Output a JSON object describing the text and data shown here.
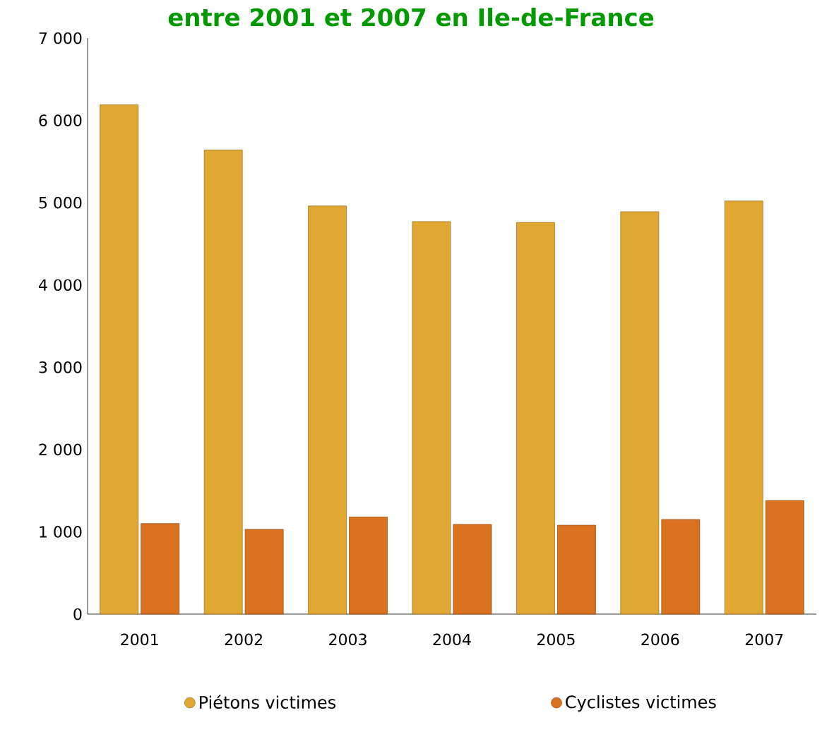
{
  "chart_data": {
    "type": "bar",
    "title": "entre 2001 et 2007 en Ile-de-France",
    "categories": [
      "2001",
      "2002",
      "2003",
      "2004",
      "2005",
      "2006",
      "2007"
    ],
    "series": [
      {
        "name": "Piétons victimes",
        "color": "#e0a832",
        "values": [
          6190,
          5640,
          4960,
          4770,
          4760,
          4890,
          5020
        ]
      },
      {
        "name": "Cyclistes victimes",
        "color": "#d9711f",
        "values": [
          1100,
          1030,
          1180,
          1090,
          1080,
          1150,
          1380
        ]
      }
    ],
    "ylim": [
      0,
      7000
    ],
    "yticks": [
      0,
      {
        "value": 1000,
        "label": "1 000"
      },
      {
        "value": 2000,
        "label": "2 000"
      },
      {
        "value": 3000,
        "label": "3 000"
      },
      {
        "value": 4000,
        "label": "4 000"
      },
      {
        "value": 5000,
        "label": "5 000"
      },
      {
        "value": 6000,
        "label": "6 000"
      },
      {
        "value": 7000,
        "label": "7 000"
      }
    ],
    "grid": false,
    "legend": "bottom"
  }
}
